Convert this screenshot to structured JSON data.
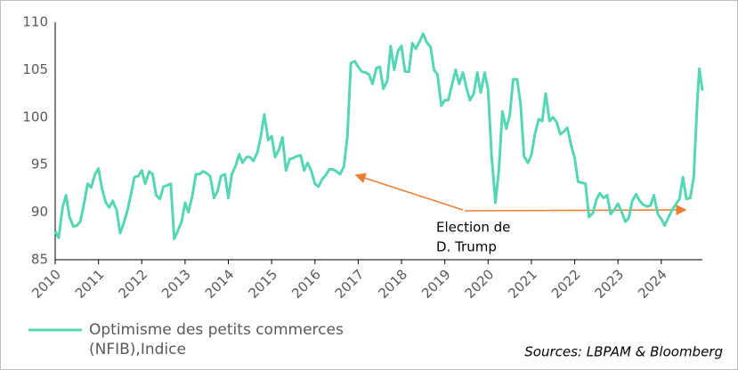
{
  "chart_data": {
    "type": "line",
    "series": [
      {
        "name": "Optimisme des petits commerces (NFIB),Indice",
        "color": "#55d6b5",
        "x": [
          2010.0,
          2010.08,
          2010.17,
          2010.25,
          2010.33,
          2010.42,
          2010.5,
          2010.58,
          2010.67,
          2010.75,
          2010.83,
          2010.92,
          2011.0,
          2011.08,
          2011.17,
          2011.25,
          2011.33,
          2011.42,
          2011.5,
          2011.58,
          2011.67,
          2011.75,
          2011.83,
          2011.92,
          2012.0,
          2012.08,
          2012.17,
          2012.25,
          2012.33,
          2012.42,
          2012.5,
          2012.58,
          2012.67,
          2012.75,
          2012.83,
          2012.92,
          2013.0,
          2013.08,
          2013.17,
          2013.25,
          2013.33,
          2013.42,
          2013.5,
          2013.58,
          2013.67,
          2013.75,
          2013.83,
          2013.92,
          2014.0,
          2014.08,
          2014.17,
          2014.25,
          2014.33,
          2014.42,
          2014.5,
          2014.58,
          2014.67,
          2014.75,
          2014.83,
          2014.92,
          2015.0,
          2015.08,
          2015.17,
          2015.25,
          2015.33,
          2015.42,
          2015.5,
          2015.58,
          2015.67,
          2015.75,
          2015.83,
          2015.92,
          2016.0,
          2016.08,
          2016.17,
          2016.25,
          2016.33,
          2016.42,
          2016.5,
          2016.58,
          2016.67,
          2016.75,
          2016.83,
          2016.92,
          2017.0,
          2017.08,
          2017.17,
          2017.25,
          2017.33,
          2017.42,
          2017.5,
          2017.58,
          2017.67,
          2017.75,
          2017.83,
          2017.92,
          2018.0,
          2018.08,
          2018.17,
          2018.25,
          2018.33,
          2018.42,
          2018.5,
          2018.58,
          2018.67,
          2018.75,
          2018.83,
          2018.92,
          2019.0,
          2019.08,
          2019.17,
          2019.25,
          2019.33,
          2019.42,
          2019.5,
          2019.58,
          2019.67,
          2019.75,
          2019.83,
          2019.92,
          2020.0,
          2020.08,
          2020.17,
          2020.25,
          2020.33,
          2020.42,
          2020.5,
          2020.58,
          2020.67,
          2020.75,
          2020.83,
          2020.92,
          2021.0,
          2021.08,
          2021.17,
          2021.25,
          2021.33,
          2021.42,
          2021.5,
          2021.58,
          2021.67,
          2021.75,
          2021.83,
          2021.92,
          2022.0,
          2022.08,
          2022.17,
          2022.25,
          2022.33,
          2022.42,
          2022.5,
          2022.58,
          2022.67,
          2022.75,
          2022.83,
          2022.92,
          2023.0,
          2023.08,
          2023.17,
          2023.25,
          2023.33,
          2023.42,
          2023.5,
          2023.58,
          2023.67,
          2023.75,
          2023.83,
          2023.92,
          2024.0,
          2024.08,
          2024.17,
          2024.25,
          2024.33,
          2024.42,
          2024.5,
          2024.58,
          2024.67,
          2024.75,
          2024.83,
          2024.88,
          2024.95
        ],
        "values": [
          88.0,
          87.3,
          90.5,
          91.8,
          89.5,
          88.5,
          88.6,
          89.0,
          91.0,
          93.0,
          92.6,
          94.0,
          94.6,
          92.5,
          91.0,
          90.5,
          91.2,
          90.2,
          87.8,
          88.8,
          90.2,
          91.9,
          93.7,
          93.8,
          94.4,
          93.0,
          94.3,
          94.0,
          91.8,
          91.4,
          92.7,
          92.8,
          93.0,
          87.2,
          88.0,
          89.0,
          91.0,
          90.0,
          91.8,
          94.0,
          94.0,
          94.3,
          94.1,
          93.8,
          91.5,
          92.2,
          93.8,
          94.0,
          91.5,
          94.0,
          94.9,
          96.1,
          95.2,
          95.8,
          95.8,
          95.4,
          96.3,
          98.0,
          100.3,
          97.6,
          98.0,
          95.8,
          96.6,
          97.9,
          94.4,
          95.6,
          95.7,
          95.9,
          96.0,
          94.4,
          95.2,
          94.3,
          93.0,
          92.7,
          93.5,
          93.9,
          94.5,
          94.5,
          94.3,
          94.0,
          94.8,
          98.0,
          105.7,
          105.9,
          105.3,
          104.8,
          104.7,
          104.5,
          103.5,
          105.2,
          105.3,
          103.0,
          103.8,
          107.5,
          105.0,
          107.0,
          107.5,
          104.8,
          104.8,
          107.8,
          107.2,
          108.0,
          108.8,
          107.9,
          107.4,
          105.0,
          104.5,
          101.2,
          101.8,
          101.8,
          103.5,
          105.0,
          103.5,
          104.7,
          103.1,
          101.8,
          102.5,
          104.7,
          102.6,
          104.7,
          102.9,
          96.0,
          91.0,
          94.5,
          100.6,
          98.8,
          100.2,
          104.0,
          104.0,
          101.4,
          95.9,
          95.2,
          96.0,
          98.2,
          99.8,
          99.6,
          102.5,
          99.6,
          100.0,
          99.5,
          98.2,
          98.5,
          98.9,
          97.0,
          95.7,
          93.2,
          93.1,
          93.0,
          89.5,
          89.9,
          91.3,
          92.0,
          91.5,
          91.8,
          89.8,
          90.3,
          90.9,
          90.1,
          89.0,
          89.4,
          91.2,
          91.9,
          91.2,
          90.8,
          90.6,
          90.7,
          91.8,
          89.8,
          89.3,
          88.6,
          89.5,
          90.2,
          90.8,
          91.4,
          93.7,
          91.4,
          91.5,
          93.7,
          101.5,
          105.1,
          102.8
        ]
      }
    ],
    "xlim": [
      2010,
      2024.95
    ],
    "xticks": [
      2010,
      2011,
      2012,
      2013,
      2014,
      2015,
      2016,
      2017,
      2018,
      2019,
      2020,
      2021,
      2022,
      2023,
      2024
    ],
    "ylim": [
      85,
      110
    ],
    "yticks": [
      85,
      90,
      95,
      100,
      105,
      110
    ],
    "grid": false,
    "annotations": [
      "Election de",
      "D. Trump"
    ],
    "source": "Sources: LBPAM & Bloomberg"
  }
}
